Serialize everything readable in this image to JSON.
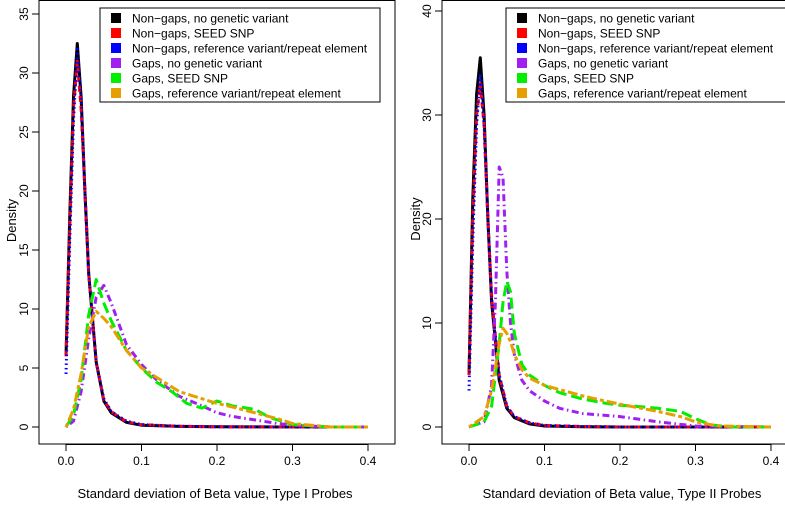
{
  "chart_data": [
    {
      "type": "line",
      "title": "",
      "xlabel": "Standard deviation of Beta value, Type I Probes",
      "ylabel": "Density",
      "xlim": [
        0,
        0.4
      ],
      "ylim": [
        0,
        35
      ],
      "xticks": [
        "0.0",
        "0.1",
        "0.2",
        "0.3",
        "0.4"
      ],
      "yticks": [
        "0",
        "5",
        "10",
        "15",
        "20",
        "25",
        "30",
        "35"
      ],
      "legend_position": "top-right",
      "legend": [
        "Non−gaps, no genetic variant",
        "Non−gaps, SEED SNP",
        "Non−gaps, reference variant/repeat element",
        "Gaps, no genetic variant",
        "Gaps, SEED SNP",
        "Gaps, reference variant/repeat element"
      ],
      "series": [
        {
          "color": "#000000",
          "dash": "solid",
          "x": [
            0.0,
            0.005,
            0.01,
            0.015,
            0.02,
            0.025,
            0.03,
            0.04,
            0.05,
            0.06,
            0.08,
            0.1,
            0.15,
            0.2,
            0.3,
            0.4
          ],
          "y": [
            6,
            18,
            28,
            32.5,
            28,
            20,
            13,
            5.5,
            2.2,
            1.2,
            0.4,
            0.15,
            0.05,
            0.02,
            0,
            0
          ]
        },
        {
          "color": "#ff0000",
          "dash": "dashed",
          "x": [
            0.0,
            0.005,
            0.01,
            0.015,
            0.02,
            0.025,
            0.03,
            0.04,
            0.05,
            0.06,
            0.08,
            0.1,
            0.15,
            0.2,
            0.3,
            0.4
          ],
          "y": [
            6,
            17,
            27,
            31,
            27,
            20,
            13,
            5.5,
            2.3,
            1.3,
            0.45,
            0.2,
            0.06,
            0.02,
            0,
            0
          ]
        },
        {
          "color": "#0000ff",
          "dash": "dotted",
          "x": [
            0.0,
            0.005,
            0.01,
            0.015,
            0.02,
            0.025,
            0.03,
            0.04,
            0.05,
            0.06,
            0.08,
            0.1,
            0.15,
            0.2,
            0.3,
            0.4
          ],
          "y": [
            4.5,
            16,
            26,
            32,
            28,
            20,
            13,
            5.5,
            2.4,
            1.3,
            0.5,
            0.2,
            0.06,
            0.02,
            0,
            0
          ]
        },
        {
          "color": "#a020f0",
          "dash": "dotdash",
          "x": [
            0.0,
            0.01,
            0.02,
            0.03,
            0.04,
            0.05,
            0.06,
            0.08,
            0.1,
            0.12,
            0.15,
            0.18,
            0.2,
            0.22,
            0.25,
            0.28,
            0.3,
            0.35,
            0.4
          ],
          "y": [
            0,
            0.5,
            3,
            7.5,
            11,
            12,
            10.5,
            7,
            5.3,
            4,
            2.6,
            1.8,
            1.2,
            0.9,
            0.6,
            0.3,
            0.15,
            0,
            0
          ]
        },
        {
          "color": "#00ee00",
          "dash": "longdash",
          "x": [
            0.0,
            0.01,
            0.02,
            0.03,
            0.04,
            0.05,
            0.06,
            0.08,
            0.1,
            0.12,
            0.14,
            0.16,
            0.18,
            0.2,
            0.22,
            0.25,
            0.27,
            0.3,
            0.35,
            0.4
          ],
          "y": [
            0,
            1,
            4,
            9.5,
            12.5,
            10.5,
            9,
            6.5,
            5,
            3.8,
            3,
            2,
            1.6,
            2.2,
            1.8,
            1.5,
            0.8,
            0.2,
            0,
            0
          ]
        },
        {
          "color": "#e69f00",
          "dash": "twodash",
          "x": [
            0.0,
            0.01,
            0.02,
            0.03,
            0.04,
            0.05,
            0.06,
            0.08,
            0.1,
            0.12,
            0.15,
            0.18,
            0.2,
            0.22,
            0.25,
            0.28,
            0.3,
            0.35,
            0.4
          ],
          "y": [
            0,
            1.5,
            4.5,
            8.5,
            9.8,
            9.2,
            8.5,
            6.5,
            5,
            4.2,
            3,
            2.4,
            2,
            1.7,
            1.2,
            0.7,
            0.3,
            0,
            0
          ]
        }
      ]
    },
    {
      "type": "line",
      "title": "",
      "xlabel": "Standard deviation of Beta value, Type II Probes",
      "ylabel": "Density",
      "xlim": [
        0,
        0.4
      ],
      "ylim": [
        0,
        40
      ],
      "xticks": [
        "0.0",
        "0.1",
        "0.2",
        "0.3",
        "0.4"
      ],
      "yticks": [
        "0",
        "10",
        "20",
        "30",
        "40"
      ],
      "legend_position": "top-right",
      "legend": [
        "Non−gaps, no genetic variant",
        "Non−gaps, SEED SNP",
        "Non−gaps, reference variant/repeat element",
        "Gaps, no genetic variant",
        "Gaps, SEED SNP",
        "Gaps, reference variant/repeat element"
      ],
      "series": [
        {
          "color": "#000000",
          "dash": "solid",
          "x": [
            0.0,
            0.005,
            0.01,
            0.015,
            0.02,
            0.025,
            0.03,
            0.04,
            0.05,
            0.06,
            0.08,
            0.1,
            0.15,
            0.2,
            0.3,
            0.4
          ],
          "y": [
            5,
            22,
            32,
            35.5,
            30,
            20,
            12,
            4.5,
            1.8,
            0.9,
            0.3,
            0.1,
            0.03,
            0,
            0,
            0
          ]
        },
        {
          "color": "#ff0000",
          "dash": "dashed",
          "x": [
            0.0,
            0.005,
            0.01,
            0.015,
            0.02,
            0.025,
            0.03,
            0.04,
            0.05,
            0.06,
            0.08,
            0.1,
            0.15,
            0.2,
            0.3,
            0.4
          ],
          "y": [
            5,
            20,
            30,
            33,
            29,
            20,
            12.5,
            5,
            2,
            1,
            0.4,
            0.15,
            0.05,
            0,
            0,
            0
          ]
        },
        {
          "color": "#0000ff",
          "dash": "dotted",
          "x": [
            0.0,
            0.005,
            0.01,
            0.015,
            0.02,
            0.025,
            0.03,
            0.04,
            0.05,
            0.06,
            0.08,
            0.1,
            0.15,
            0.2,
            0.3,
            0.4
          ],
          "y": [
            3.5,
            18,
            29,
            34,
            29,
            20,
            12.5,
            5,
            2,
            1,
            0.4,
            0.15,
            0.05,
            0,
            0,
            0
          ]
        },
        {
          "color": "#a020f0",
          "dash": "dotdash",
          "x": [
            0.0,
            0.02,
            0.03,
            0.035,
            0.04,
            0.045,
            0.05,
            0.055,
            0.06,
            0.07,
            0.08,
            0.1,
            0.12,
            0.15,
            0.2,
            0.25,
            0.3,
            0.4
          ],
          "y": [
            0,
            0.5,
            4,
            12,
            25,
            24,
            15,
            10,
            7,
            4.5,
            3.5,
            2.5,
            1.8,
            1.3,
            1,
            0.5,
            0.1,
            0
          ]
        },
        {
          "color": "#00ee00",
          "dash": "longdash",
          "x": [
            0.0,
            0.02,
            0.03,
            0.04,
            0.045,
            0.05,
            0.055,
            0.06,
            0.07,
            0.08,
            0.1,
            0.12,
            0.15,
            0.18,
            0.2,
            0.22,
            0.25,
            0.28,
            0.3,
            0.32,
            0.35,
            0.4
          ],
          "y": [
            0,
            0.5,
            2,
            8,
            12,
            14,
            13,
            9,
            6,
            5,
            4,
            3.3,
            2.7,
            2.3,
            2.1,
            2,
            1.8,
            1.5,
            0.8,
            0.2,
            0,
            0
          ]
        },
        {
          "color": "#e69f00",
          "dash": "twodash",
          "x": [
            0.0,
            0.02,
            0.03,
            0.04,
            0.045,
            0.05,
            0.055,
            0.06,
            0.07,
            0.08,
            0.1,
            0.12,
            0.15,
            0.18,
            0.2,
            0.22,
            0.25,
            0.28,
            0.3,
            0.33,
            0.4
          ],
          "y": [
            0,
            1,
            3.5,
            8,
            9.5,
            9,
            8.2,
            7,
            5.5,
            4.7,
            4,
            3.6,
            3,
            2.5,
            2.2,
            1.9,
            1.5,
            1,
            0.5,
            0.1,
            0
          ]
        }
      ]
    }
  ]
}
